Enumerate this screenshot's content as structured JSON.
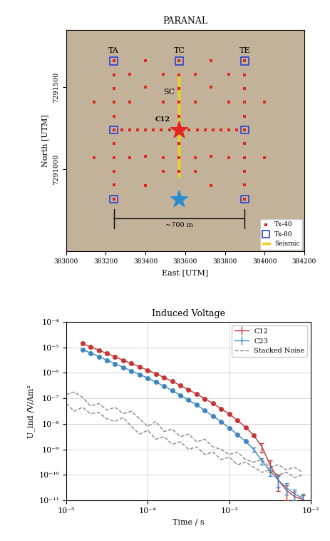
{
  "chart_data": [
    {
      "type": "scatter",
      "title": "PARANAL",
      "x_label": "East [UTM]",
      "y_label": "North [UTM]",
      "xlim": [
        383000,
        384200
      ],
      "xticks": [
        383000,
        383200,
        383400,
        383600,
        383800,
        384000,
        384200
      ],
      "ylim": [
        7290500,
        7291850
      ],
      "yticks": [
        7291000,
        7291500
      ],
      "grid": false,
      "legend": "lower right",
      "series": [
        {
          "name": "Tx-40",
          "type": "scatter",
          "marker": "square",
          "color": "#e3241b",
          "x": [
            383240,
            383240,
            383240,
            383240,
            383240,
            383240,
            383240,
            383240,
            383240,
            383240,
            383240,
            383900,
            383900,
            383900,
            383900,
            383900,
            383900,
            383900,
            383900,
            383900,
            383900,
            383900,
            383570,
            383570,
            383570,
            383570,
            383570,
            383570,
            383570,
            383570,
            383280,
            383320,
            383360,
            383400,
            383440,
            383480,
            383520,
            383620,
            383660,
            383700,
            383740,
            383780,
            383820,
            383860,
            383400,
            383400,
            383400,
            383400,
            383730,
            383730,
            383730,
            383730,
            383320,
            383320,
            383320,
            383490,
            383490,
            383490,
            383490,
            383650,
            383650,
            383650,
            383650,
            383820,
            383820,
            383820,
            383140,
            383140,
            384000,
            384000
          ],
          "values": [
            7290820,
            7290904,
            7290988,
            7291072,
            7291156,
            7291240,
            7291324,
            7291408,
            7291492,
            7291576,
            7291660,
            7290820,
            7290904,
            7290988,
            7291072,
            7291156,
            7291240,
            7291324,
            7291408,
            7291492,
            7291576,
            7291660,
            7290988,
            7291072,
            7291156,
            7291324,
            7291408,
            7291492,
            7291576,
            7291660,
            7291240,
            7291240,
            7291240,
            7291240,
            7291240,
            7291240,
            7291240,
            7291240,
            7291240,
            7291240,
            7291240,
            7291240,
            7291240,
            7291240,
            7291660,
            7291500,
            7291080,
            7290900,
            7291660,
            7291500,
            7291080,
            7290900,
            7291580,
            7291410,
            7291070,
            7291580,
            7291410,
            7291070,
            7290990,
            7291580,
            7291410,
            7291070,
            7290990,
            7291580,
            7291410,
            7291070,
            7291410,
            7291070,
            7291410,
            7291070
          ]
        },
        {
          "name": "Tx-80",
          "type": "scatter",
          "marker": "open_square",
          "color": "#2b3fd6",
          "x": [
            383240,
            383570,
            383900,
            383240,
            383900,
            383240,
            383900
          ],
          "values": [
            7291660,
            7291660,
            7291660,
            7291240,
            7291240,
            7290820,
            7290820
          ]
        },
        {
          "name": "Seismic",
          "type": "line",
          "color": "#f2d21b",
          "x": [
            383570,
            383570
          ],
          "values": [
            7290960,
            7291580
          ]
        }
      ],
      "stations": [
        {
          "label": "C12",
          "x": 383570,
          "y": 7291240,
          "color": "#e3241b",
          "marker": "star"
        },
        {
          "label": null,
          "x": 383570,
          "y": 7290820,
          "color": "#2a8bd0",
          "marker": "star"
        }
      ],
      "annotations": [
        {
          "text": "TA",
          "x": 383240,
          "y": 7291700
        },
        {
          "text": "TC",
          "x": 383570,
          "y": 7291700
        },
        {
          "text": "TE",
          "x": 383900,
          "y": 7291700
        },
        {
          "text": "SC",
          "x": 383520,
          "y": 7291450
        }
      ],
      "scale_bar": {
        "label": "~700 m",
        "x": [
          383240,
          383900
        ],
        "y": 7290700
      }
    },
    {
      "type": "line",
      "title": "Induced Voltage",
      "x_label": "Time / s",
      "y_label": "U_ind /V/Am²",
      "log": true,
      "grid": true,
      "legend": "upper right",
      "xlim": [
        1e-05,
        0.01
      ],
      "xticks": [
        {
          "value": 1e-05,
          "label": "10⁻⁵"
        },
        {
          "value": 0.0001,
          "label": "10⁻⁴"
        },
        {
          "value": 0.001,
          "label": "10⁻³"
        },
        {
          "value": 0.01,
          "label": "10⁻²"
        }
      ],
      "ylim": [
        1e-11,
        0.0001
      ],
      "yticks": [
        {
          "value": 1e-11,
          "label": "10⁻¹¹"
        },
        {
          "value": 1e-10,
          "label": "10⁻¹⁰"
        },
        {
          "value": 1e-09,
          "label": "10⁻⁹"
        },
        {
          "value": 1e-08,
          "label": "10⁻⁸"
        },
        {
          "value": 1e-07,
          "label": "10⁻⁷"
        },
        {
          "value": 1e-06,
          "label": "10⁻⁶"
        },
        {
          "value": 1e-05,
          "label": "10⁻⁵"
        },
        {
          "value": 0.0001,
          "label": "10⁻⁴"
        }
      ],
      "x": [
        1.585e-05,
        1.995e-05,
        2.512e-05,
        3.162e-05,
        3.981e-05,
        5.012e-05,
        6.31e-05,
        7.943e-05,
        0.0001,
        0.0001259,
        0.0001585,
        0.0001995,
        0.0002512,
        0.0003162,
        0.0003981,
        0.0005012,
        0.000631,
        0.0007943,
        0.001,
        0.001259,
        0.001585,
        0.001995,
        0.002512,
        0.003162,
        0.003981,
        0.005012,
        0.00631,
        0.007943
      ],
      "series": [
        {
          "name": "C12",
          "color": "#cc3333",
          "marker": "circle",
          "line_style": "solid",
          "values": [
            1.41e-05,
            1.05e-05,
            7.76e-06,
            5.75e-06,
            4.27e-06,
            3.16e-06,
            2.34e-06,
            1.74e-06,
            1.29e-06,
            9.33e-07,
            6.61e-07,
            4.68e-07,
            3.24e-07,
            2.19e-07,
            1.48e-07,
            9.77e-08,
            6.31e-08,
            3.98e-08,
            2.4e-08,
            1.38e-08,
            7.41e-09,
            3.55e-09,
            1.26e-09,
            2.5e-10,
            6.3e-11,
            2.5e-11,
            1.4e-11,
            1.1e-11
          ],
          "errors": [
            null,
            null,
            null,
            null,
            null,
            null,
            null,
            null,
            null,
            null,
            null,
            null,
            null,
            null,
            null,
            null,
            null,
            null,
            null,
            null,
            null,
            null,
            5e-10,
            1.2e-10,
            4e-11,
            1.5e-11,
            8e-12,
            5e-12
          ]
        },
        {
          "name": "C23",
          "color": "#3a86c8",
          "marker": "circle",
          "line_style": "solid",
          "values": [
            8.32e-06,
            6.03e-06,
            4.37e-06,
            3.16e-06,
            2.29e-06,
            1.66e-06,
            1.2e-06,
            8.71e-07,
            6.31e-07,
            4.37e-07,
            3.02e-07,
            2.04e-07,
            1.35e-07,
            8.71e-08,
            5.5e-08,
            3.39e-08,
            2.04e-08,
            1.2e-08,
            6.92e-09,
            3.8e-09,
            2.09e-09,
            1e-09,
            3.55e-10,
            1.41e-10,
            6.3e-11,
            3.16e-11,
            1.78e-11,
            1.26e-11
          ],
          "errors": [
            null,
            null,
            null,
            null,
            null,
            null,
            null,
            null,
            null,
            null,
            null,
            null,
            null,
            null,
            null,
            null,
            null,
            null,
            null,
            null,
            null,
            2e-10,
            1e-10,
            5e-11,
            3e-11,
            1.5e-11,
            8e-12,
            6e-12
          ]
        },
        {
          "name": "Stacked Noise",
          "color": "#888888",
          "line_style": "dashed",
          "curves": [
            {
              "x": [
                1e-05,
                1.259e-05,
                1.585e-05,
                1.995e-05,
                2.512e-05,
                3.162e-05,
                3.981e-05,
                5.012e-05,
                6.31e-05,
                7.943e-05,
                0.0001,
                0.0001259,
                0.0001585,
                0.0001995,
                0.0002512,
                0.0003162,
                0.0003981,
                0.0005012,
                0.000631,
                0.0007943,
                0.001,
                0.001259,
                0.001585,
                0.001995,
                0.002512,
                0.003162,
                0.003981,
                0.005012,
                0.00631,
                0.007943
              ],
              "values": [
                1.41e-07,
                1.78e-07,
                1.12e-07,
                5.01e-08,
                6.31e-08,
                3.55e-08,
                4.47e-08,
                2.51e-08,
                3.16e-08,
                1.58e-08,
                7.94e-09,
                1.26e-08,
                5.01e-09,
                6.31e-09,
                3.16e-09,
                3.98e-09,
                2e-09,
                2.51e-09,
                1.26e-09,
                1e-09,
                6.31e-10,
                7.94e-10,
                3.98e-10,
                3.16e-10,
                3.98e-10,
                2e-10,
                2.51e-10,
                1.58e-10,
                2e-10,
                1.26e-10
              ]
            },
            {
              "x": [
                1e-05,
                1.259e-05,
                1.585e-05,
                1.995e-05,
                2.512e-05,
                3.162e-05,
                3.981e-05,
                5.012e-05,
                6.31e-05,
                7.943e-05,
                0.0001,
                0.0001259,
                0.0001585,
                0.0001995,
                0.0002512,
                0.0003162,
                0.0003981,
                0.0005012,
                0.000631,
                0.0007943,
                0.001,
                0.001259,
                0.001585,
                0.001995,
                0.002512,
                0.003162,
                0.003981,
                0.005012,
                0.00631,
                0.007943
              ],
              "values": [
                6.31e-08,
                3.16e-08,
                4.47e-08,
                2.51e-08,
                2.82e-08,
                1.58e-08,
                1.26e-08,
                1.78e-08,
                7.94e-09,
                3.98e-09,
                5.62e-09,
                2.51e-09,
                3.16e-09,
                1.58e-09,
                2e-09,
                1e-09,
                1.26e-09,
                6.31e-10,
                7.94e-10,
                3.98e-10,
                5.01e-10,
                2.51e-10,
                3.16e-10,
                2e-10,
                1.26e-10,
                1.58e-10,
                1e-10,
                1.26e-10,
                7.94e-11,
                1e-10
              ]
            }
          ]
        }
      ]
    }
  ]
}
